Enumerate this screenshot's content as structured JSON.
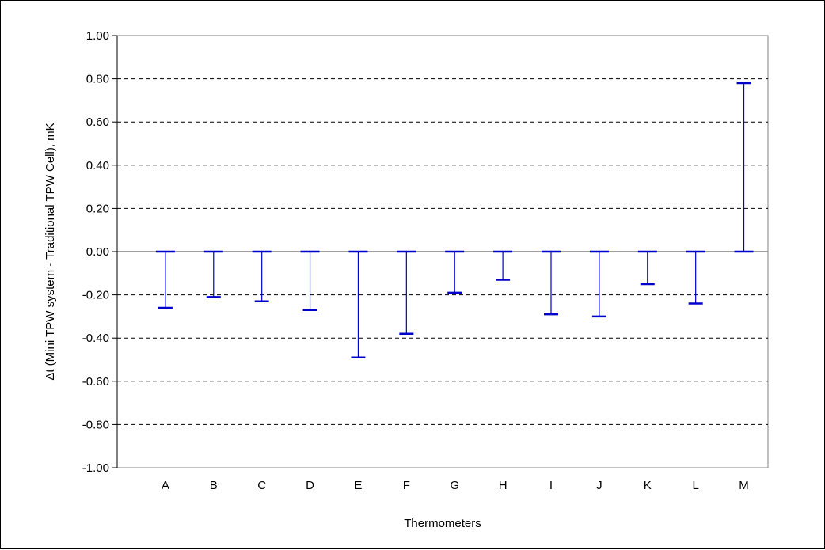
{
  "chart_data": {
    "type": "bar",
    "title": "",
    "xlabel": "Thermometers",
    "ylabel": "Δt (Mini TPW system - Traditional TPW Cell), mK",
    "ylim": [
      -1.0,
      1.0
    ],
    "ytick_step": 0.2,
    "grid": "horizontal dashed",
    "legend": "none",
    "categories": [
      "A",
      "B",
      "C",
      "D",
      "E",
      "F",
      "G",
      "H",
      "I",
      "J",
      "K",
      "L",
      "M"
    ],
    "values": [
      -0.26,
      -0.21,
      -0.23,
      -0.27,
      -0.49,
      -0.38,
      -0.19,
      -0.13,
      -0.29,
      -0.3,
      -0.15,
      -0.24,
      0.78
    ],
    "colors": {
      "series": "#0000cc",
      "axis": "#808080",
      "grid": "#000000",
      "plot_bg": "#ffffff"
    }
  }
}
